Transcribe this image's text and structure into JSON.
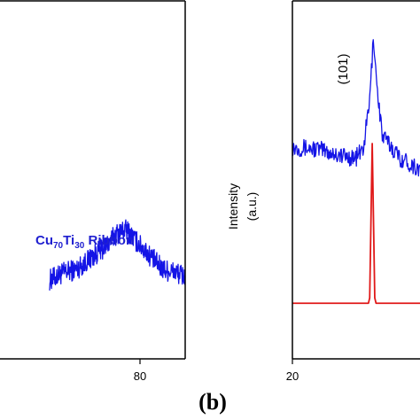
{
  "panel_label": "(b)",
  "colors": {
    "pattern": "#1414e6",
    "reference": "#e01818",
    "annotation": "#1f1fd0",
    "axis": "#000000"
  },
  "chart_data": [
    {
      "type": "line",
      "panel": "a",
      "title": "",
      "xlabel": "",
      "ylabel": "",
      "xlim": [
        20,
        90
      ],
      "ylim": [
        0,
        1
      ],
      "xticks": [
        80
      ],
      "xtick_labels": [
        "80"
      ],
      "annotation_parts": {
        "el1": "Cu",
        "sub1": "70",
        "el2": "Ti",
        "sub2": "30",
        "rest": " Ribbon"
      },
      "series": [
        {
          "x": [
            60,
            63,
            66,
            69,
            72,
            75,
            77,
            79,
            82,
            85,
            88,
            90
          ],
          "y": [
            0.22,
            0.24,
            0.25,
            0.28,
            0.31,
            0.35,
            0.36,
            0.33,
            0.29,
            0.25,
            0.24,
            0.23
          ],
          "noise": 0.03,
          "color": "#1414e6"
        }
      ],
      "grid": false,
      "legend": "none"
    },
    {
      "type": "line",
      "panel": "b",
      "title": "",
      "xlabel": "",
      "ylabel_lines": [
        "Intensity",
        "(a.u.)"
      ],
      "xlim": [
        20,
        40
      ],
      "ylim": [
        0,
        1
      ],
      "xticks": [
        20
      ],
      "xtick_labels": [
        "20"
      ],
      "peak_label": "(101)",
      "series": [
        {
          "x": [
            20,
            22,
            24,
            25,
            25.6,
            26.1,
            26.4,
            26.7,
            27.1,
            27.6,
            28.5,
            30,
            32,
            34,
            36,
            38,
            40
          ],
          "y": [
            0.59,
            0.585,
            0.565,
            0.56,
            0.585,
            0.72,
            0.9,
            0.75,
            0.62,
            0.6,
            0.56,
            0.53,
            0.5,
            0.47,
            0.455,
            0.45,
            0.44
          ],
          "noise": 0.025,
          "color": "#1414e6"
        },
        {
          "x": [
            20,
            26.0,
            26.1,
            26.3,
            26.5,
            26.6,
            40
          ],
          "y": [
            0.155,
            0.155,
            0.17,
            0.6,
            0.17,
            0.155,
            0.155
          ],
          "noise": 0,
          "color": "#e01818"
        }
      ],
      "grid": false,
      "legend": "none"
    }
  ]
}
